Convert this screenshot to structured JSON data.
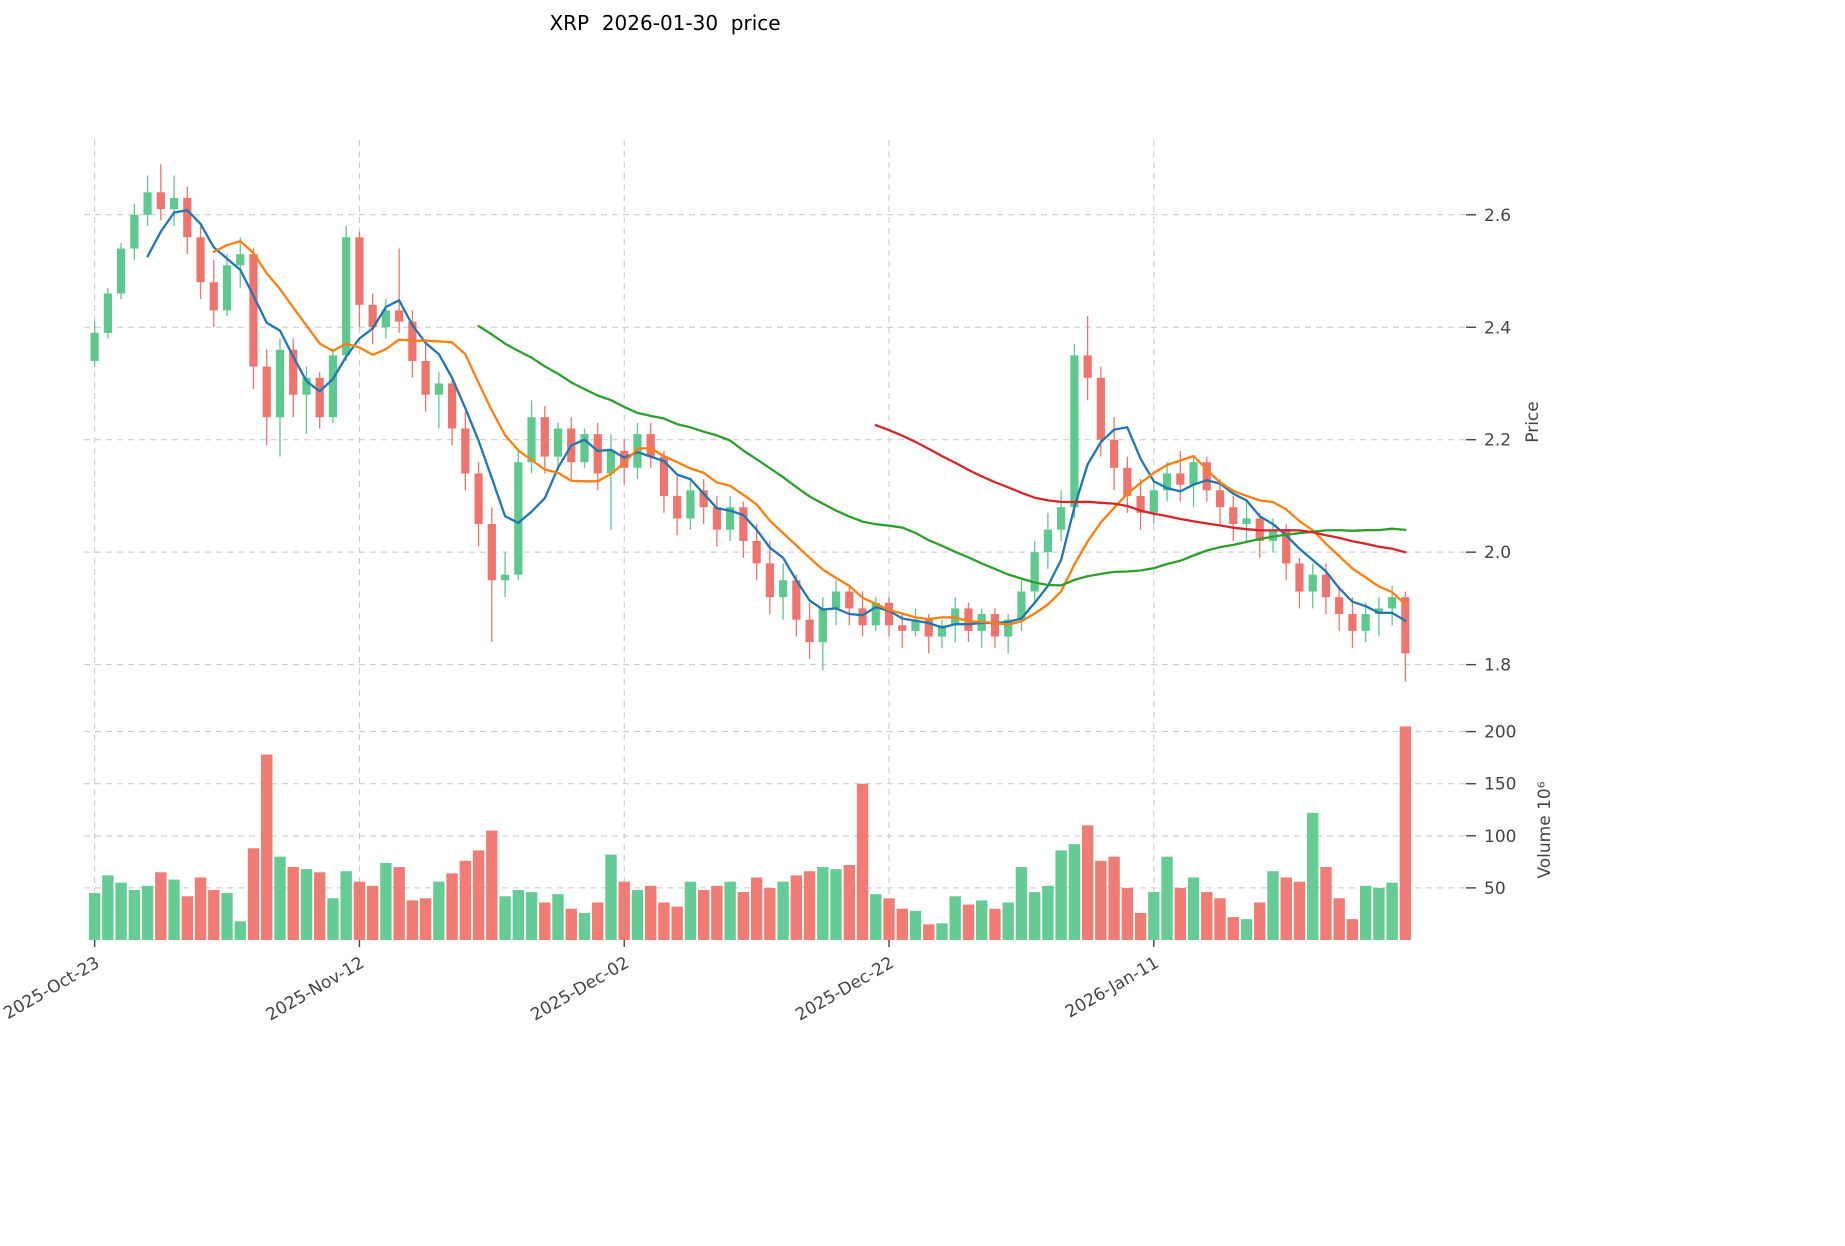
{
  "title": "XRP  2026-01-30  price",
  "axes": {
    "price_label": "Price",
    "volume_label": "Volume  10⁶",
    "price_ticks": [
      1.8,
      2.0,
      2.2,
      2.4,
      2.6
    ],
    "volume_ticks": [
      50,
      100,
      150,
      200
    ],
    "x_ticks": [
      {
        "index": 0,
        "label": "2025-Oct-23"
      },
      {
        "index": 20,
        "label": "2025-Nov-12"
      },
      {
        "index": 40,
        "label": "2025-Dec-02"
      },
      {
        "index": 60,
        "label": "2025-Dec-22"
      },
      {
        "index": 80,
        "label": "2026-Jan-11"
      }
    ]
  },
  "colors": {
    "up": "#5ec98f",
    "down": "#f0746e",
    "grid": "#c9c9c9",
    "tick_text": "#444444",
    "ma_blue": "#1f77b4",
    "ma_orange": "#ff7f0e",
    "ma_green": "#2ca02c",
    "ma_red": "#d62728"
  },
  "chart_data": {
    "type": "candlestick",
    "title": "XRP  2026-01-30  price",
    "ylabel": "Price",
    "ylabel2": "Volume  10⁶",
    "ylim": [
      1.73,
      2.733
    ],
    "volume_ylim": [
      0,
      215
    ],
    "grid": true,
    "moving_averages": [
      {
        "period": 5,
        "color": "#1f77b4"
      },
      {
        "period": 10,
        "color": "#ff7f0e"
      },
      {
        "period": 30,
        "color": "#2ca02c"
      },
      {
        "period": 60,
        "color": "#d62728"
      }
    ],
    "columns": [
      "date",
      "open",
      "high",
      "low",
      "close",
      "volume_millions"
    ],
    "ohlc": [
      [
        "2025-10-23",
        2.34,
        2.41,
        2.33,
        2.39,
        45
      ],
      [
        "2025-10-24",
        2.39,
        2.47,
        2.38,
        2.46,
        62
      ],
      [
        "2025-10-25",
        2.46,
        2.55,
        2.45,
        2.54,
        55
      ],
      [
        "2025-10-26",
        2.54,
        2.62,
        2.52,
        2.6,
        48
      ],
      [
        "2025-10-27",
        2.6,
        2.67,
        2.58,
        2.64,
        52
      ],
      [
        "2025-10-28",
        2.64,
        2.69,
        2.59,
        2.61,
        65
      ],
      [
        "2025-10-29",
        2.61,
        2.67,
        2.58,
        2.63,
        58
      ],
      [
        "2025-10-30",
        2.63,
        2.65,
        2.53,
        2.56,
        42
      ],
      [
        "2025-10-31",
        2.56,
        2.58,
        2.45,
        2.48,
        60
      ],
      [
        "2025-11-01",
        2.48,
        2.52,
        2.4,
        2.43,
        48
      ],
      [
        "2025-11-02",
        2.43,
        2.53,
        2.42,
        2.51,
        45
      ],
      [
        "2025-11-03",
        2.51,
        2.56,
        2.47,
        2.53,
        18
      ],
      [
        "2025-11-04",
        2.53,
        2.54,
        2.29,
        2.33,
        88
      ],
      [
        "2025-11-05",
        2.33,
        2.36,
        2.19,
        2.24,
        178
      ],
      [
        "2025-11-06",
        2.24,
        2.38,
        2.17,
        2.36,
        80
      ],
      [
        "2025-11-07",
        2.36,
        2.38,
        2.24,
        2.28,
        70
      ],
      [
        "2025-11-08",
        2.28,
        2.33,
        2.21,
        2.31,
        68
      ],
      [
        "2025-11-09",
        2.31,
        2.32,
        2.22,
        2.24,
        65
      ],
      [
        "2025-11-10",
        2.24,
        2.36,
        2.23,
        2.35,
        40
      ],
      [
        "2025-11-11",
        2.35,
        2.58,
        2.34,
        2.56,
        66
      ],
      [
        "2025-11-12",
        2.56,
        2.57,
        2.4,
        2.44,
        56
      ],
      [
        "2025-11-13",
        2.44,
        2.46,
        2.37,
        2.4,
        52
      ],
      [
        "2025-11-14",
        2.4,
        2.45,
        2.38,
        2.43,
        74
      ],
      [
        "2025-11-15",
        2.43,
        2.54,
        2.39,
        2.41,
        70
      ],
      [
        "2025-11-16",
        2.41,
        2.43,
        2.31,
        2.34,
        38
      ],
      [
        "2025-11-17",
        2.34,
        2.38,
        2.25,
        2.28,
        40
      ],
      [
        "2025-11-18",
        2.28,
        2.32,
        2.22,
        2.3,
        56
      ],
      [
        "2025-11-19",
        2.3,
        2.31,
        2.19,
        2.22,
        64
      ],
      [
        "2025-11-20",
        2.22,
        2.25,
        2.11,
        2.14,
        76
      ],
      [
        "2025-11-21",
        2.14,
        2.16,
        2.01,
        2.05,
        86
      ],
      [
        "2025-11-22",
        2.05,
        2.08,
        1.84,
        1.95,
        105
      ],
      [
        "2025-11-23",
        1.95,
        2.0,
        1.92,
        1.96,
        42
      ],
      [
        "2025-11-24",
        1.96,
        2.18,
        1.95,
        2.16,
        48
      ],
      [
        "2025-11-25",
        2.16,
        2.27,
        2.14,
        2.24,
        46
      ],
      [
        "2025-11-26",
        2.24,
        2.26,
        2.14,
        2.17,
        36
      ],
      [
        "2025-11-27",
        2.17,
        2.23,
        2.15,
        2.22,
        44
      ],
      [
        "2025-11-28",
        2.22,
        2.24,
        2.13,
        2.16,
        30
      ],
      [
        "2025-11-29",
        2.16,
        2.22,
        2.15,
        2.21,
        26
      ],
      [
        "2025-11-30",
        2.21,
        2.23,
        2.11,
        2.14,
        36
      ],
      [
        "2025-12-01",
        2.14,
        2.21,
        2.04,
        2.18,
        82
      ],
      [
        "2025-12-02",
        2.18,
        2.2,
        2.12,
        2.15,
        56
      ],
      [
        "2025-12-03",
        2.15,
        2.23,
        2.13,
        2.21,
        48
      ],
      [
        "2025-12-04",
        2.21,
        2.23,
        2.15,
        2.17,
        52
      ],
      [
        "2025-12-05",
        2.17,
        2.18,
        2.07,
        2.1,
        36
      ],
      [
        "2025-12-06",
        2.1,
        2.14,
        2.03,
        2.06,
        32
      ],
      [
        "2025-12-07",
        2.06,
        2.13,
        2.04,
        2.11,
        56
      ],
      [
        "2025-12-08",
        2.11,
        2.13,
        2.05,
        2.08,
        48
      ],
      [
        "2025-12-09",
        2.08,
        2.1,
        2.01,
        2.04,
        52
      ],
      [
        "2025-12-10",
        2.04,
        2.1,
        2.02,
        2.08,
        56
      ],
      [
        "2025-12-11",
        2.08,
        2.09,
        1.99,
        2.02,
        46
      ],
      [
        "2025-12-12",
        2.02,
        2.05,
        1.95,
        1.98,
        60
      ],
      [
        "2025-12-13",
        1.98,
        2.02,
        1.89,
        1.92,
        50
      ],
      [
        "2025-12-14",
        1.92,
        1.98,
        1.88,
        1.95,
        56
      ],
      [
        "2025-12-15",
        1.95,
        1.96,
        1.85,
        1.88,
        62
      ],
      [
        "2025-12-16",
        1.88,
        1.91,
        1.81,
        1.84,
        66
      ],
      [
        "2025-12-17",
        1.84,
        1.92,
        1.79,
        1.9,
        70
      ],
      [
        "2025-12-18",
        1.9,
        1.95,
        1.87,
        1.93,
        68
      ],
      [
        "2025-12-19",
        1.93,
        1.94,
        1.87,
        1.9,
        72
      ],
      [
        "2025-12-20",
        1.9,
        1.93,
        1.85,
        1.87,
        150
      ],
      [
        "2025-12-21",
        1.87,
        1.92,
        1.86,
        1.91,
        44
      ],
      [
        "2025-12-22",
        1.91,
        1.92,
        1.85,
        1.87,
        40
      ],
      [
        "2025-12-23",
        1.87,
        1.89,
        1.83,
        1.86,
        30
      ],
      [
        "2025-12-24",
        1.86,
        1.9,
        1.85,
        1.88,
        28
      ],
      [
        "2025-12-25",
        1.88,
        1.89,
        1.82,
        1.85,
        15
      ],
      [
        "2025-12-26",
        1.85,
        1.88,
        1.83,
        1.87,
        16
      ],
      [
        "2025-12-27",
        1.87,
        1.92,
        1.84,
        1.9,
        42
      ],
      [
        "2025-12-28",
        1.9,
        1.91,
        1.84,
        1.86,
        34
      ],
      [
        "2025-12-29",
        1.86,
        1.9,
        1.83,
        1.89,
        38
      ],
      [
        "2025-12-30",
        1.89,
        1.9,
        1.83,
        1.85,
        30
      ],
      [
        "2025-12-31",
        1.85,
        1.89,
        1.82,
        1.88,
        36
      ],
      [
        "2026-01-01",
        1.88,
        1.95,
        1.86,
        1.93,
        70
      ],
      [
        "2026-01-02",
        1.93,
        2.02,
        1.91,
        2.0,
        46
      ],
      [
        "2026-01-03",
        2.0,
        2.07,
        1.97,
        2.04,
        52
      ],
      [
        "2026-01-04",
        2.04,
        2.11,
        2.02,
        2.08,
        86
      ],
      [
        "2026-01-05",
        2.08,
        2.37,
        2.06,
        2.35,
        92
      ],
      [
        "2026-01-06",
        2.35,
        2.42,
        2.27,
        2.31,
        110
      ],
      [
        "2026-01-07",
        2.31,
        2.33,
        2.17,
        2.2,
        76
      ],
      [
        "2026-01-08",
        2.2,
        2.24,
        2.11,
        2.15,
        80
      ],
      [
        "2026-01-09",
        2.15,
        2.17,
        2.07,
        2.1,
        50
      ],
      [
        "2026-01-10",
        2.1,
        2.13,
        2.04,
        2.07,
        26
      ],
      [
        "2026-01-11",
        2.07,
        2.13,
        2.05,
        2.11,
        46
      ],
      [
        "2026-01-12",
        2.11,
        2.16,
        2.09,
        2.14,
        80
      ],
      [
        "2026-01-13",
        2.14,
        2.18,
        2.09,
        2.12,
        50
      ],
      [
        "2026-01-14",
        2.12,
        2.17,
        2.08,
        2.16,
        60
      ],
      [
        "2026-01-15",
        2.16,
        2.17,
        2.09,
        2.11,
        46
      ],
      [
        "2026-01-16",
        2.11,
        2.13,
        2.05,
        2.08,
        40
      ],
      [
        "2026-01-17",
        2.08,
        2.1,
        2.02,
        2.05,
        22
      ],
      [
        "2026-01-18",
        2.05,
        2.09,
        2.02,
        2.06,
        20
      ],
      [
        "2026-01-19",
        2.06,
        2.07,
        1.99,
        2.02,
        36
      ],
      [
        "2026-01-20",
        2.02,
        2.06,
        2.0,
        2.04,
        66
      ],
      [
        "2026-01-21",
        2.04,
        2.05,
        1.95,
        1.98,
        60
      ],
      [
        "2026-01-22",
        1.98,
        1.99,
        1.9,
        1.93,
        56
      ],
      [
        "2026-01-23",
        1.93,
        1.98,
        1.9,
        1.96,
        122
      ],
      [
        "2026-01-24",
        1.96,
        1.98,
        1.89,
        1.92,
        70
      ],
      [
        "2026-01-25",
        1.92,
        1.94,
        1.86,
        1.89,
        40
      ],
      [
        "2026-01-26",
        1.89,
        1.92,
        1.83,
        1.86,
        20
      ],
      [
        "2026-01-27",
        1.86,
        1.91,
        1.84,
        1.89,
        52
      ],
      [
        "2026-01-28",
        1.89,
        1.92,
        1.85,
        1.9,
        50
      ],
      [
        "2026-01-29",
        1.9,
        1.94,
        1.87,
        1.92,
        55
      ],
      [
        "2026-01-30",
        1.92,
        1.93,
        1.77,
        1.82,
        205
      ]
    ]
  }
}
